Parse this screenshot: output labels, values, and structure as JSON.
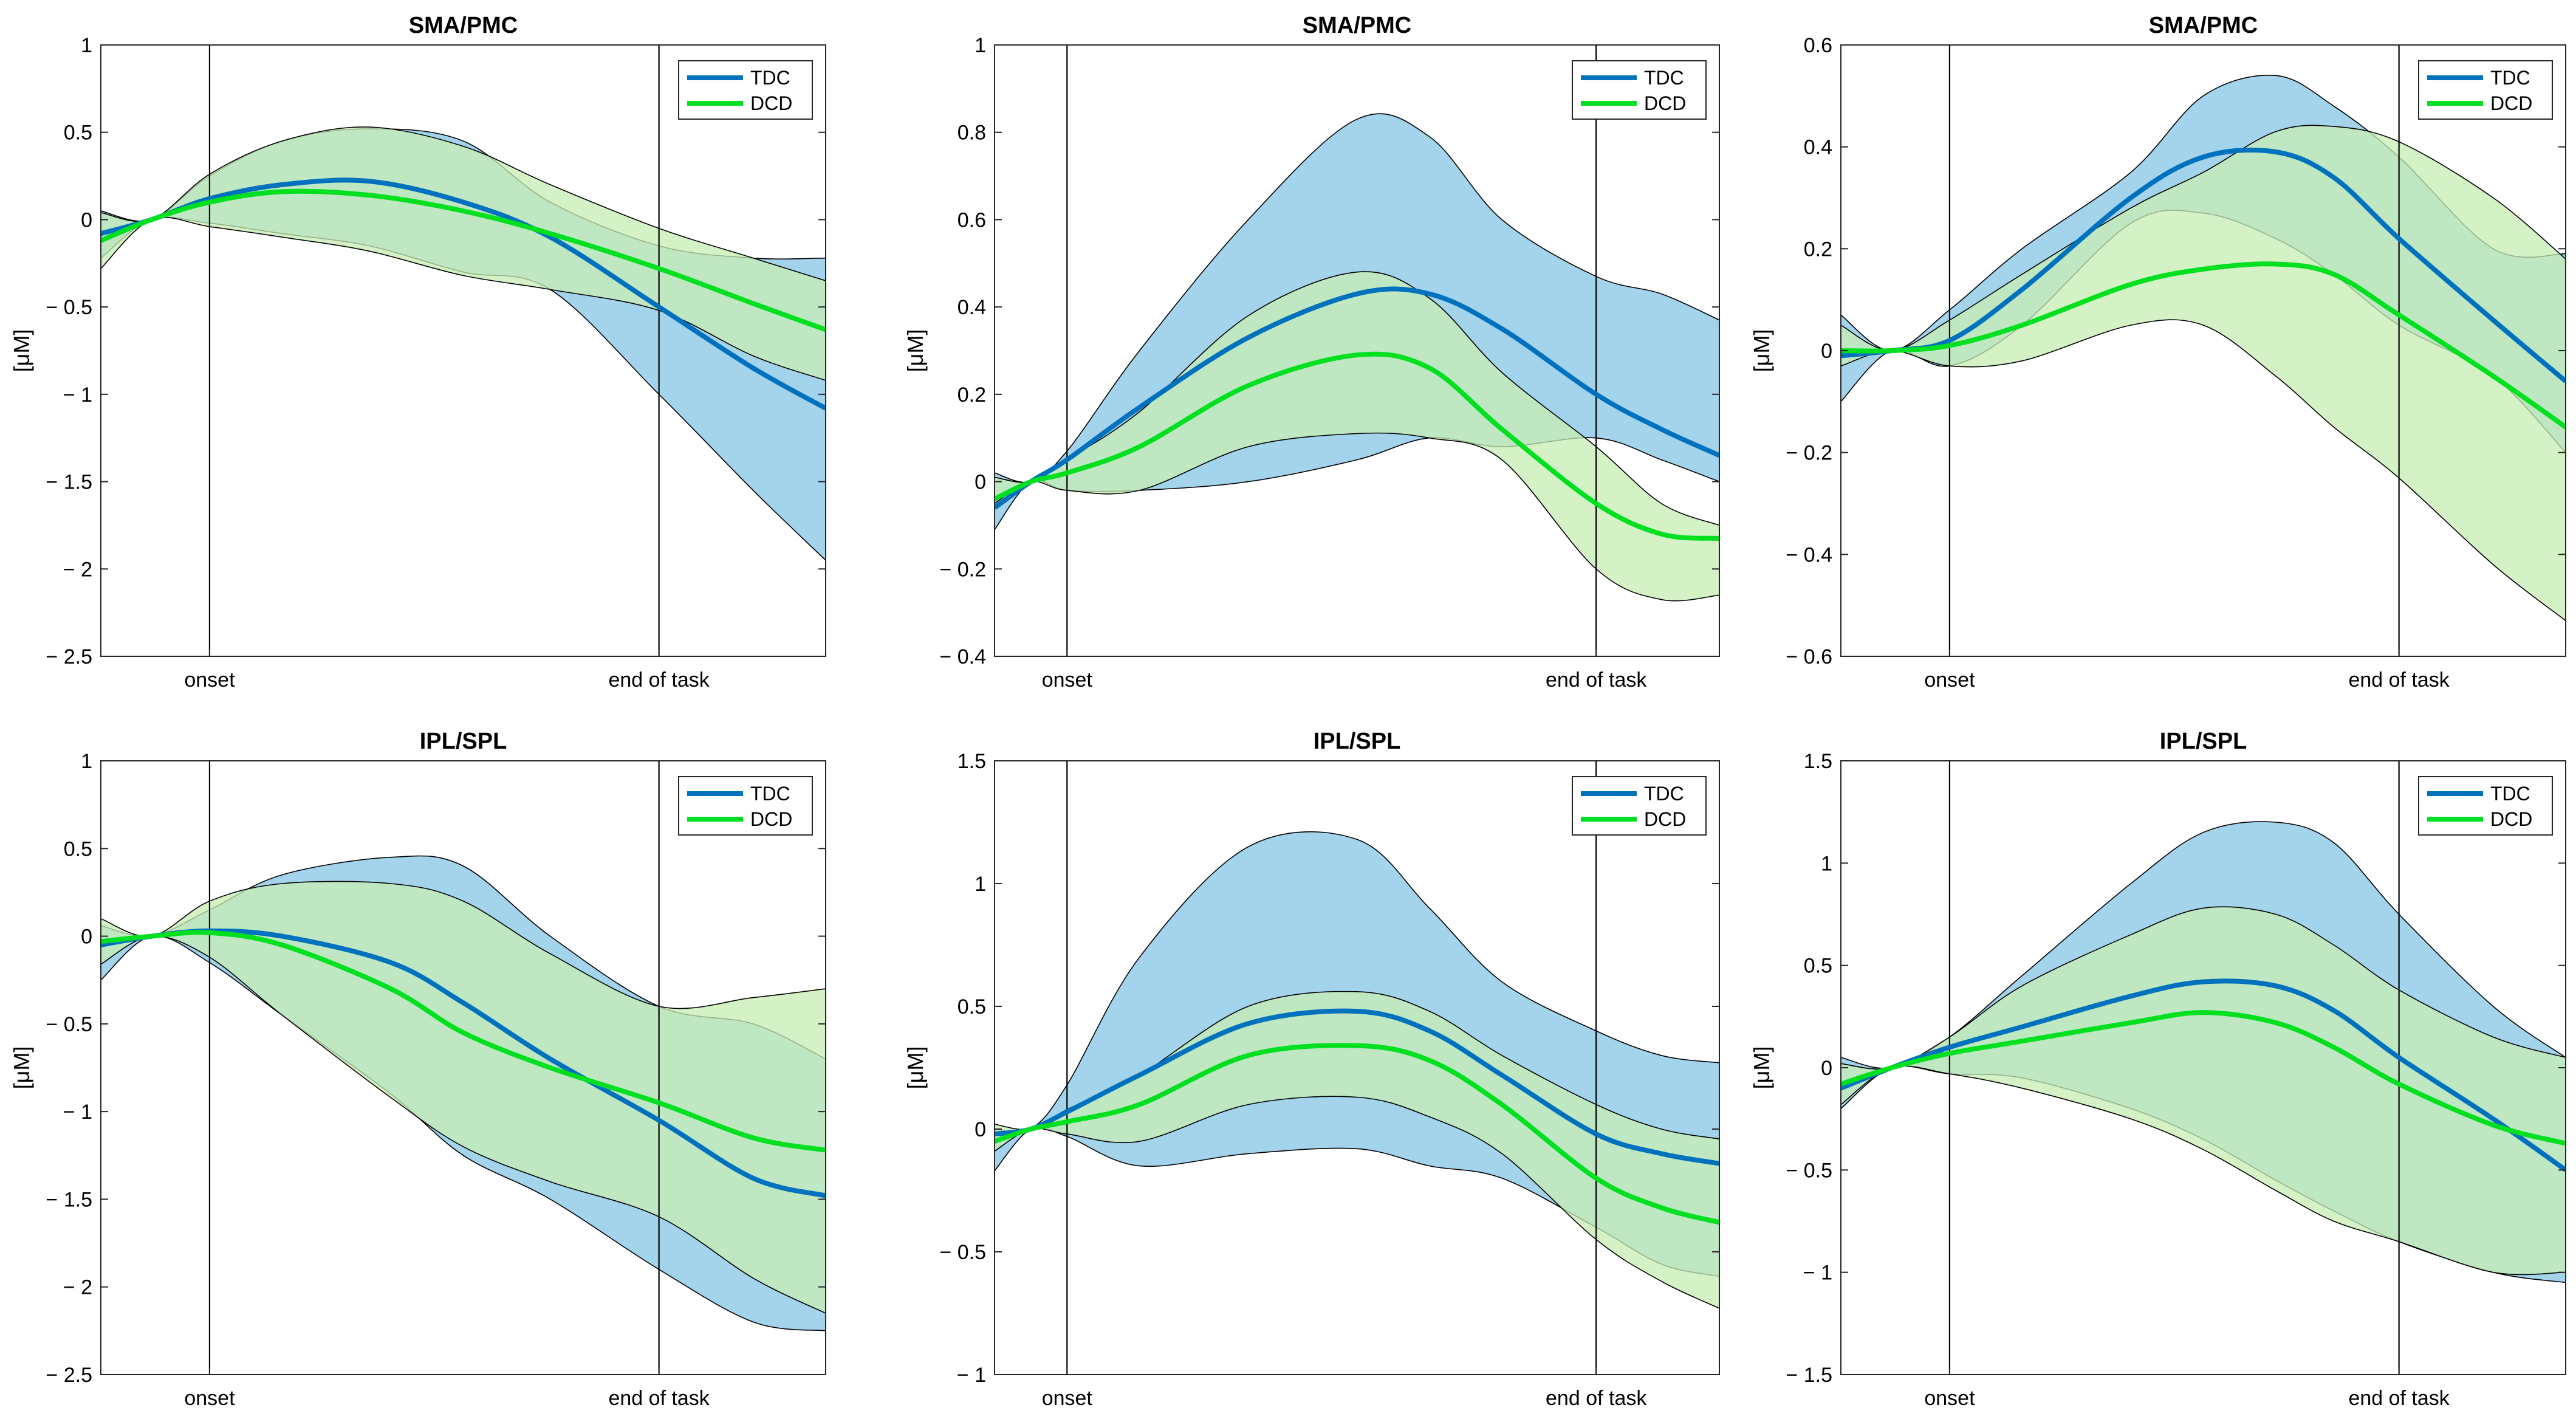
{
  "figure": {
    "colors": {
      "tdc": "#0072BD",
      "dcd": "#00E020",
      "tdc_band": "#A4D3EC",
      "dcd_band": "#C7EDB4",
      "overlap_band": "#8FD2B6"
    }
  },
  "chart_data": [
    {
      "type": "line",
      "title": "SMA/PMC",
      "ylabel": "[μM]",
      "ylim": [
        -2.5,
        1
      ],
      "yticks": [
        -2.5,
        -2,
        -1.5,
        -1,
        -0.5,
        0,
        0.5,
        1
      ],
      "ytick_labels": [
        "− 2.5",
        "− 2",
        "− 1.5",
        "− 1",
        "− 0.5",
        "0",
        "0.5",
        "1"
      ],
      "xlim": [
        0,
        1
      ],
      "events": [
        {
          "x": 0.15,
          "label": "onset"
        },
        {
          "x": 0.77,
          "label": "end of task"
        }
      ],
      "legend": [
        "TDC",
        "DCD"
      ],
      "x": [
        0,
        0.07,
        0.15,
        0.25,
        0.37,
        0.5,
        0.62,
        0.77,
        0.9,
        1
      ],
      "series": [
        {
          "name": "TDC",
          "mean": [
            -0.08,
            0.0,
            0.12,
            0.2,
            0.22,
            0.1,
            -0.1,
            -0.5,
            -0.85,
            -1.08
          ],
          "upper": [
            0.05,
            0.0,
            0.25,
            0.45,
            0.52,
            0.45,
            0.1,
            -0.15,
            -0.22,
            -0.22
          ],
          "lower": [
            -0.22,
            0.0,
            -0.02,
            -0.08,
            -0.15,
            -0.3,
            -0.4,
            -1.0,
            -1.55,
            -1.95
          ]
        },
        {
          "name": "DCD",
          "mean": [
            -0.12,
            0.0,
            0.1,
            0.16,
            0.14,
            0.05,
            -0.08,
            -0.28,
            -0.48,
            -0.63
          ],
          "upper": [
            0.04,
            0.0,
            0.26,
            0.45,
            0.53,
            0.42,
            0.2,
            -0.05,
            -0.22,
            -0.35
          ],
          "lower": [
            -0.28,
            0.0,
            -0.04,
            -0.1,
            -0.18,
            -0.32,
            -0.4,
            -0.52,
            -0.78,
            -0.92
          ]
        }
      ]
    },
    {
      "type": "line",
      "title": "SMA/PMC",
      "ylabel": "[μM]",
      "ylim": [
        -0.4,
        1
      ],
      "yticks": [
        -0.4,
        -0.2,
        0,
        0.2,
        0.4,
        0.6,
        0.8,
        1
      ],
      "ytick_labels": [
        "− 0.4",
        "− 0.2",
        "0",
        "0.2",
        "0.4",
        "0.6",
        "0.8",
        "1"
      ],
      "xlim": [
        0,
        1
      ],
      "events": [
        {
          "x": 0.1,
          "label": "onset"
        },
        {
          "x": 0.83,
          "label": "end of task"
        }
      ],
      "legend": [
        "TDC",
        "DCD"
      ],
      "x": [
        0,
        0.05,
        0.1,
        0.2,
        0.35,
        0.5,
        0.6,
        0.7,
        0.83,
        0.92,
        1
      ],
      "series": [
        {
          "name": "TDC",
          "mean": [
            -0.06,
            0.0,
            0.05,
            0.17,
            0.33,
            0.43,
            0.43,
            0.35,
            0.2,
            0.12,
            0.06
          ],
          "upper": [
            0.02,
            0.0,
            0.07,
            0.3,
            0.6,
            0.83,
            0.79,
            0.6,
            0.47,
            0.43,
            0.37
          ],
          "lower": [
            -0.11,
            0.0,
            -0.02,
            -0.02,
            0.0,
            0.05,
            0.1,
            0.08,
            0.1,
            0.05,
            0.0
          ]
        },
        {
          "name": "DCD",
          "mean": [
            -0.04,
            0.0,
            0.02,
            0.08,
            0.22,
            0.29,
            0.26,
            0.12,
            -0.05,
            -0.12,
            -0.13
          ],
          "upper": [
            0.01,
            0.0,
            0.05,
            0.16,
            0.38,
            0.48,
            0.42,
            0.25,
            0.08,
            -0.05,
            -0.1
          ],
          "lower": [
            -0.05,
            0.0,
            -0.02,
            -0.02,
            0.08,
            0.11,
            0.1,
            0.05,
            -0.2,
            -0.27,
            -0.26
          ]
        }
      ]
    },
    {
      "type": "line",
      "title": "SMA/PMC",
      "ylabel": "[μM]",
      "ylim": [
        -0.6,
        0.6
      ],
      "yticks": [
        -0.6,
        -0.4,
        -0.2,
        0,
        0.2,
        0.4,
        0.6
      ],
      "ytick_labels": [
        "− 0.6",
        "− 0.4",
        "− 0.2",
        "0",
        "0.2",
        "0.4",
        "0.6"
      ],
      "xlim": [
        0,
        1
      ],
      "events": [
        {
          "x": 0.15,
          "label": "onset"
        },
        {
          "x": 0.77,
          "label": "end of task"
        }
      ],
      "legend": [
        "TDC",
        "DCD"
      ],
      "x": [
        0,
        0.07,
        0.15,
        0.25,
        0.4,
        0.5,
        0.6,
        0.68,
        0.77,
        0.9,
        1
      ],
      "series": [
        {
          "name": "TDC",
          "mean": [
            -0.01,
            0.0,
            0.02,
            0.12,
            0.3,
            0.38,
            0.39,
            0.34,
            0.22,
            0.06,
            -0.06
          ],
          "upper": [
            0.07,
            0.0,
            0.08,
            0.2,
            0.35,
            0.5,
            0.54,
            0.48,
            0.38,
            0.2,
            0.19
          ],
          "lower": [
            -0.1,
            0.0,
            -0.03,
            0.05,
            0.25,
            0.27,
            0.22,
            0.15,
            0.05,
            -0.05,
            -0.2
          ]
        },
        {
          "name": "DCD",
          "mean": [
            0.0,
            0.0,
            0.01,
            0.05,
            0.13,
            0.16,
            0.17,
            0.15,
            0.07,
            -0.05,
            -0.15
          ],
          "upper": [
            0.05,
            0.0,
            0.06,
            0.15,
            0.28,
            0.35,
            0.43,
            0.44,
            0.41,
            0.3,
            0.18
          ],
          "lower": [
            -0.03,
            0.0,
            -0.03,
            -0.02,
            0.05,
            0.05,
            -0.05,
            -0.15,
            -0.25,
            -0.42,
            -0.53
          ]
        }
      ]
    },
    {
      "type": "line",
      "title": "IPL/SPL",
      "ylabel": "[μM]",
      "ylim": [
        -2.5,
        1
      ],
      "yticks": [
        -2.5,
        -2,
        -1.5,
        -1,
        -0.5,
        0,
        0.5,
        1
      ],
      "ytick_labels": [
        "− 2.5",
        "− 2",
        "− 1.5",
        "− 1",
        "− 0.5",
        "0",
        "0.5",
        "1"
      ],
      "xlim": [
        0,
        1
      ],
      "events": [
        {
          "x": 0.15,
          "label": "onset"
        },
        {
          "x": 0.77,
          "label": "end of task"
        }
      ],
      "legend": [
        "TDC",
        "DCD"
      ],
      "x": [
        0,
        0.07,
        0.15,
        0.25,
        0.4,
        0.5,
        0.62,
        0.77,
        0.9,
        1
      ],
      "series": [
        {
          "name": "TDC",
          "mean": [
            -0.05,
            0.0,
            0.03,
            0.0,
            -0.15,
            -0.38,
            -0.7,
            -1.05,
            -1.38,
            -1.48
          ],
          "upper": [
            0.06,
            0.0,
            0.15,
            0.35,
            0.45,
            0.4,
            0.0,
            -0.4,
            -0.5,
            -0.7
          ],
          "lower": [
            -0.25,
            0.0,
            -0.15,
            -0.45,
            -0.9,
            -1.25,
            -1.5,
            -1.9,
            -2.2,
            -2.25
          ]
        },
        {
          "name": "DCD",
          "mean": [
            -0.03,
            0.0,
            0.02,
            -0.05,
            -0.3,
            -0.55,
            -0.75,
            -0.95,
            -1.15,
            -1.22
          ],
          "upper": [
            0.1,
            0.0,
            0.2,
            0.3,
            0.3,
            0.2,
            -0.1,
            -0.4,
            -0.35,
            -0.3
          ],
          "lower": [
            -0.16,
            0.0,
            -0.12,
            -0.45,
            -0.92,
            -1.2,
            -1.4,
            -1.6,
            -1.95,
            -2.15
          ]
        }
      ]
    },
    {
      "type": "line",
      "title": "IPL/SPL",
      "ylabel": "[μM]",
      "ylim": [
        -1,
        1.5
      ],
      "yticks": [
        -1,
        -0.5,
        0,
        0.5,
        1,
        1.5
      ],
      "ytick_labels": [
        "− 1",
        "− 0.5",
        "0",
        "0.5",
        "1",
        "1.5"
      ],
      "xlim": [
        0,
        1
      ],
      "events": [
        {
          "x": 0.1,
          "label": "onset"
        },
        {
          "x": 0.83,
          "label": "end of task"
        }
      ],
      "legend": [
        "TDC",
        "DCD"
      ],
      "x": [
        0,
        0.05,
        0.1,
        0.2,
        0.35,
        0.5,
        0.6,
        0.7,
        0.83,
        0.92,
        1
      ],
      "series": [
        {
          "name": "TDC",
          "mean": [
            -0.02,
            0.0,
            0.07,
            0.22,
            0.43,
            0.48,
            0.4,
            0.22,
            -0.02,
            -0.1,
            -0.14
          ],
          "upper": [
            0.0,
            0.0,
            0.18,
            0.7,
            1.15,
            1.18,
            0.9,
            0.6,
            0.4,
            0.3,
            0.27
          ],
          "lower": [
            -0.17,
            0.0,
            -0.03,
            -0.15,
            -0.1,
            -0.08,
            -0.15,
            -0.2,
            -0.4,
            -0.55,
            -0.6
          ]
        },
        {
          "name": "DCD",
          "mean": [
            -0.05,
            0.0,
            0.03,
            0.1,
            0.3,
            0.34,
            0.28,
            0.1,
            -0.2,
            -0.32,
            -0.38
          ],
          "upper": [
            0.02,
            0.0,
            0.08,
            0.22,
            0.5,
            0.56,
            0.48,
            0.3,
            0.1,
            0.0,
            -0.04
          ],
          "lower": [
            -0.09,
            0.0,
            -0.02,
            -0.05,
            0.1,
            0.13,
            0.05,
            -0.1,
            -0.45,
            -0.62,
            -0.73
          ]
        }
      ]
    },
    {
      "type": "line",
      "title": "IPL/SPL",
      "ylabel": "[μM]",
      "ylim": [
        -1.5,
        1.5
      ],
      "yticks": [
        -1.5,
        -1,
        -0.5,
        0,
        0.5,
        1,
        1.5
      ],
      "ytick_labels": [
        "− 1.5",
        "− 1",
        "− 0.5",
        "0",
        "0.5",
        "1",
        "1.5"
      ],
      "xlim": [
        0,
        1
      ],
      "events": [
        {
          "x": 0.15,
          "label": "onset"
        },
        {
          "x": 0.77,
          "label": "end of task"
        }
      ],
      "legend": [
        "TDC",
        "DCD"
      ],
      "x": [
        0,
        0.07,
        0.15,
        0.25,
        0.4,
        0.5,
        0.6,
        0.68,
        0.77,
        0.9,
        1
      ],
      "series": [
        {
          "name": "TDC",
          "mean": [
            -0.1,
            0.0,
            0.1,
            0.2,
            0.35,
            0.42,
            0.4,
            0.28,
            0.05,
            -0.25,
            -0.5
          ],
          "upper": [
            0.05,
            0.0,
            0.15,
            0.45,
            0.9,
            1.15,
            1.2,
            1.1,
            0.75,
            0.3,
            0.05
          ],
          "lower": [
            -0.2,
            0.0,
            -0.03,
            -0.05,
            -0.2,
            -0.35,
            -0.55,
            -0.7,
            -0.85,
            -1.0,
            -1.05
          ]
        },
        {
          "name": "DCD",
          "mean": [
            -0.08,
            0.0,
            0.07,
            0.13,
            0.22,
            0.27,
            0.22,
            0.1,
            -0.08,
            -0.28,
            -0.37
          ],
          "upper": [
            0.02,
            0.0,
            0.15,
            0.4,
            0.65,
            0.78,
            0.75,
            0.6,
            0.38,
            0.15,
            0.05
          ],
          "lower": [
            -0.18,
            0.0,
            -0.03,
            -0.1,
            -0.25,
            -0.4,
            -0.6,
            -0.75,
            -0.85,
            -1.0,
            -1.0
          ]
        }
      ]
    }
  ]
}
